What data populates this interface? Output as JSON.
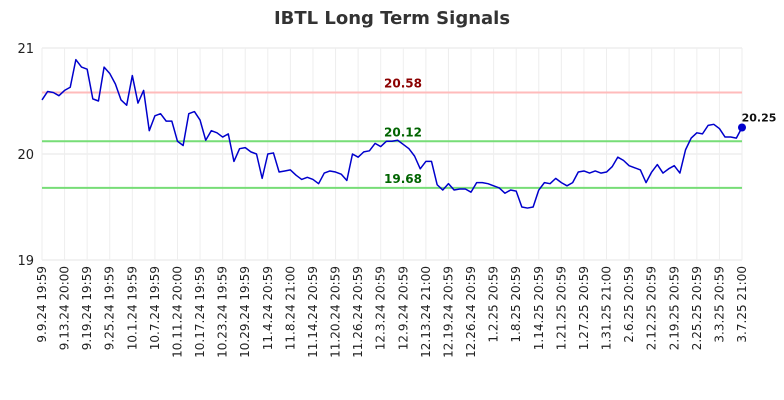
{
  "chart_data": {
    "type": "line",
    "title": "IBTL Long Term Signals",
    "xlabel": "",
    "ylabel": "",
    "ylim": [
      19,
      21
    ],
    "y_ticks": [
      "19",
      "20",
      "21"
    ],
    "grid": true,
    "x_tick_labels": [
      "9.9.24 19:59",
      "9.13.24 20:00",
      "9.19.24 19:59",
      "9.25.24 19:59",
      "10.1.24 19:59",
      "10.7.24 19:59",
      "10.11.24 20:00",
      "10.17.24 19:59",
      "10.23.24 19:59",
      "10.29.24 19:59",
      "11.4.24 20:59",
      "11.8.24 21:00",
      "11.14.24 20:59",
      "11.20.24 20:59",
      "11.26.24 20:59",
      "12.3.24 20:59",
      "12.9.24 20:59",
      "12.13.24 21:00",
      "12.19.24 20:59",
      "12.26.24 20:59",
      "1.2.25 20:59",
      "1.8.25 20:59",
      "1.14.25 20:59",
      "1.21.25 20:59",
      "1.27.25 20:59",
      "1.31.25 21:00",
      "2.6.25 20:59",
      "2.12.25 20:59",
      "2.19.25 20:59",
      "2.25.25 20:59",
      "3.3.25 20:59",
      "3.7.25 21:00"
    ],
    "series": [
      {
        "color": "#0000cc",
        "values": [
          20.51,
          20.59,
          20.58,
          20.55,
          20.6,
          20.63,
          20.89,
          20.82,
          20.8,
          20.52,
          20.5,
          20.82,
          20.76,
          20.66,
          20.51,
          20.46,
          20.74,
          20.48,
          20.6,
          20.22,
          20.36,
          20.38,
          20.31,
          20.31,
          20.12,
          20.08,
          20.38,
          20.4,
          20.32,
          20.13,
          20.22,
          20.2,
          20.16,
          20.19,
          19.93,
          20.05,
          20.06,
          20.02,
          20.0,
          19.77,
          20.0,
          20.01,
          19.83,
          19.84,
          19.85,
          19.8,
          19.76,
          19.78,
          19.76,
          19.72,
          19.82,
          19.84,
          19.83,
          19.81,
          19.75,
          20.0,
          19.97,
          20.02,
          20.03,
          20.1,
          20.07,
          20.12,
          20.12,
          20.13,
          20.09,
          20.05,
          19.98,
          19.86,
          19.93,
          19.93,
          19.71,
          19.66,
          19.72,
          19.66,
          19.67,
          19.67,
          19.64,
          19.73,
          19.73,
          19.72,
          19.7,
          19.68,
          19.63,
          19.66,
          19.65,
          19.5,
          19.49,
          19.5,
          19.66,
          19.73,
          19.72,
          19.77,
          19.73,
          19.7,
          19.73,
          19.83,
          19.84,
          19.82,
          19.84,
          19.82,
          19.83,
          19.88,
          19.97,
          19.94,
          19.89,
          19.87,
          19.85,
          19.73,
          19.83,
          19.9,
          19.82,
          19.86,
          19.89,
          19.82,
          20.04,
          20.15,
          20.2,
          20.19,
          20.27,
          20.28,
          20.24,
          20.16,
          20.16,
          20.15,
          20.25
        ]
      }
    ],
    "levels": [
      {
        "value": 20.58,
        "label": "20.58",
        "line_color": "#ffbbbb",
        "text_color": "#8b0000"
      },
      {
        "value": 20.12,
        "label": "20.12",
        "line_color": "#77dd77",
        "text_color": "#006400"
      },
      {
        "value": 19.68,
        "label": "19.68",
        "line_color": "#77dd77",
        "text_color": "#006400"
      }
    ],
    "last_value": 20.25,
    "last_value_label": "20.25"
  }
}
